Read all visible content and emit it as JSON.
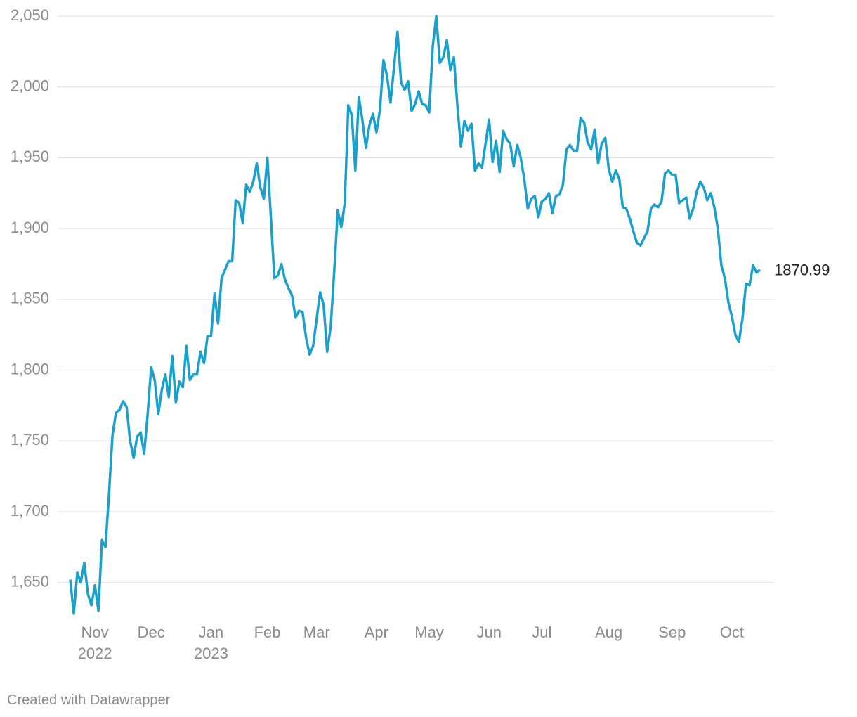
{
  "chart_data": {
    "type": "line",
    "color": "#1aa0cc",
    "ylim": [
      1625,
      2052
    ],
    "yticks": [
      {
        "value": 1650,
        "label": "1,650"
      },
      {
        "value": 1700,
        "label": "1,700"
      },
      {
        "value": 1750,
        "label": "1,750"
      },
      {
        "value": 1800,
        "label": "1,800"
      },
      {
        "value": 1850,
        "label": "1,850"
      },
      {
        "value": 1900,
        "label": "1,900"
      },
      {
        "value": 1950,
        "label": "1,950"
      },
      {
        "value": 2000,
        "label": "2,000"
      },
      {
        "value": 2050,
        "label": "2,050"
      }
    ],
    "grid": true,
    "categories": [
      null,
      null,
      null,
      null,
      null,
      null,
      null,
      "Nov\n2022",
      null,
      null,
      null,
      null,
      null,
      null,
      null,
      null,
      null,
      null,
      null,
      null,
      null,
      null,
      null,
      "Dec",
      null,
      null,
      null,
      null,
      null,
      null,
      null,
      null,
      null,
      null,
      null,
      null,
      null,
      null,
      null,
      null,
      "Jan\n2023",
      null,
      null,
      null,
      null,
      null,
      null,
      null,
      null,
      null,
      null,
      null,
      null,
      null,
      null,
      null,
      "Feb",
      null,
      null,
      null,
      null,
      null,
      null,
      null,
      null,
      null,
      null,
      null,
      null,
      null,
      "Mar",
      null,
      null,
      null,
      null,
      null,
      null,
      null,
      null,
      null,
      null,
      null,
      null,
      null,
      null,
      null,
      null,
      "Apr",
      null,
      null,
      null,
      null,
      null,
      null,
      null,
      null,
      null,
      null,
      null,
      null,
      null,
      null,
      "May",
      null,
      null,
      null,
      null,
      null,
      null,
      null,
      null,
      null,
      null,
      null,
      null,
      null,
      null,
      null,
      null,
      "Jun",
      null,
      null,
      null,
      null,
      null,
      null,
      null,
      null,
      null,
      null,
      null,
      null,
      null,
      null,
      "Jul",
      null,
      null,
      null,
      null,
      null,
      null,
      null,
      null,
      null,
      null,
      null,
      null,
      null,
      null,
      null,
      null,
      null,
      null,
      "Aug",
      null,
      null,
      null,
      null,
      null,
      null,
      null,
      null,
      null,
      null,
      null,
      null,
      null,
      null,
      null,
      null,
      null,
      "Sep",
      null,
      null,
      null,
      null,
      null,
      null,
      null,
      null,
      null,
      null,
      null,
      null,
      null,
      null,
      null,
      null,
      "Oct",
      null,
      null,
      null,
      null,
      null,
      null,
      null,
      null
    ],
    "values": [
      1652,
      1628,
      1657,
      1650,
      1664,
      1642,
      1634,
      1648,
      1630,
      1680,
      1675,
      1712,
      1754,
      1770,
      1772,
      1778,
      1774,
      1750,
      1738,
      1753,
      1756,
      1741,
      1769,
      1802,
      1793,
      1769,
      1786,
      1797,
      1781,
      1810,
      1777,
      1792,
      1788,
      1817,
      1793,
      1797,
      1797,
      1813,
      1805,
      1824,
      1824,
      1854,
      1833,
      1865,
      1871,
      1877,
      1877,
      1920,
      1918,
      1904,
      1931,
      1926,
      1933,
      1946,
      1929,
      1921,
      1950,
      1908,
      1865,
      1867,
      1875,
      1864,
      1858,
      1853,
      1837,
      1842,
      1841,
      1823,
      1811,
      1817,
      1836,
      1855,
      1846,
      1813,
      1831,
      1870,
      1913,
      1901,
      1918,
      1987,
      1980,
      1941,
      1993,
      1977,
      1957,
      1973,
      1981,
      1968,
      1984,
      2019,
      2008,
      1989,
      2014,
      2039,
      2003,
      1998,
      2004,
      1983,
      1988,
      1997,
      1988,
      1987,
      1982,
      2029,
      2050,
      2017,
      2021,
      2033,
      2012,
      2021,
      1987,
      1958,
      1976,
      1969,
      1974,
      1941,
      1946,
      1943,
      1960,
      1977,
      1947,
      1962,
      1940,
      1969,
      1963,
      1960,
      1944,
      1959,
      1950,
      1935,
      1914,
      1921,
      1923,
      1908,
      1919,
      1921,
      1925,
      1911,
      1923,
      1924,
      1931,
      1956,
      1959,
      1955,
      1955,
      1978,
      1975,
      1961,
      1956,
      1970,
      1946,
      1960,
      1964,
      1942,
      1933,
      1941,
      1935,
      1915,
      1914,
      1907,
      1898,
      1890,
      1888,
      1893,
      1898,
      1914,
      1917,
      1915,
      1919,
      1939,
      1941,
      1938,
      1938,
      1918,
      1920,
      1922,
      1907,
      1914,
      1926,
      1933,
      1929,
      1920,
      1925,
      1915,
      1900,
      1874,
      1865,
      1848,
      1838,
      1825,
      1820,
      1836,
      1861,
      1860,
      1874,
      1869,
      1870.99
    ]
  },
  "credit": "Created with Datawrapper"
}
